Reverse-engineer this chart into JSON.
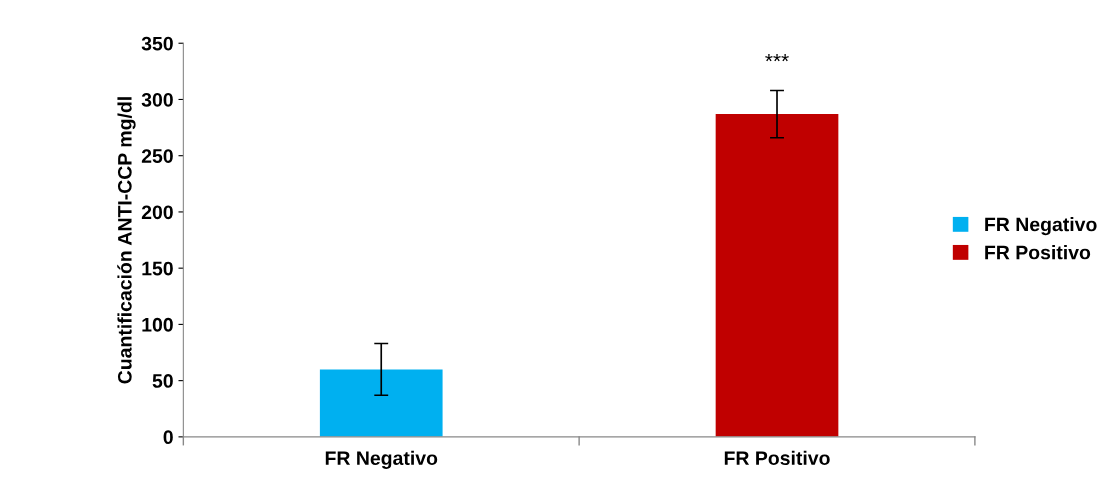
{
  "chart_data": {
    "type": "bar",
    "ylabel": "Cuantificación ANTI-CCP mg/dl",
    "categories": [
      "FR Negativo",
      "FR Positivo"
    ],
    "series": [
      {
        "name": "FR Negativo",
        "color": "#00b0f0",
        "values": [
          60,
          null
        ],
        "errors": [
          23,
          null
        ]
      },
      {
        "name": "FR Positivo",
        "color": "#c00000",
        "values": [
          null,
          287
        ],
        "errors": [
          null,
          21
        ]
      }
    ],
    "ylim": [
      0,
      350
    ],
    "yticks": [
      0,
      50,
      100,
      150,
      200,
      250,
      300,
      350
    ],
    "grid": false,
    "legend": "right",
    "annotations": [
      "***"
    ]
  }
}
